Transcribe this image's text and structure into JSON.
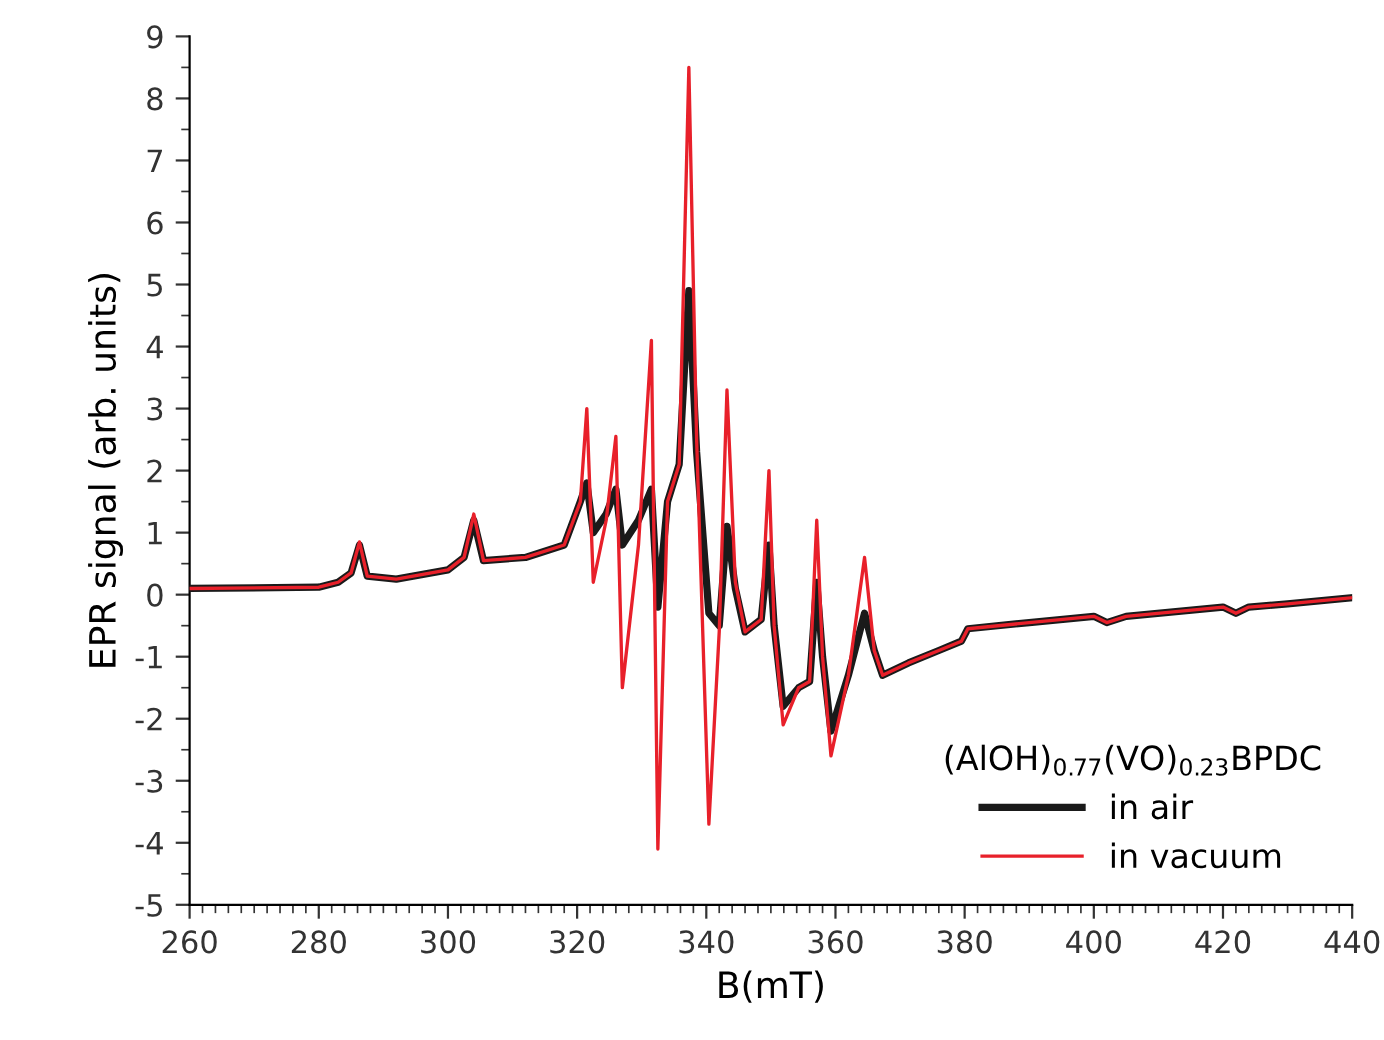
{
  "chart_data": {
    "type": "line",
    "xlabel": "B(mT)",
    "ylabel": "EPR signal (arb. units)",
    "legend_title": "(AlOH)$_{0.77}$(VO)$_{0.23}$BPDC",
    "legend": "bottom right",
    "grid": false,
    "marker": "none",
    "line_style": "solid",
    "xlim": [
      260,
      440
    ],
    "xticks": [
      260,
      280,
      300,
      320,
      340,
      360,
      380,
      400,
      420,
      440
    ],
    "ylim": [
      -5,
      9
    ],
    "yticks": [
      -5,
      -4,
      -3,
      -2,
      -1,
      0,
      1,
      2,
      3,
      4,
      5,
      6,
      7,
      8,
      9
    ],
    "x": [
      260,
      280,
      283,
      285,
      286.3,
      287.5,
      292,
      300,
      302.5,
      304,
      305.5,
      312,
      318,
      320.5,
      321.5,
      322.5,
      324.5,
      326,
      327,
      329.5,
      331.5,
      332.5,
      334,
      335.8,
      337.3,
      338.5,
      340.4,
      342,
      343.2,
      344.5,
      346,
      348.5,
      349.7,
      350.5,
      351.9,
      354.3,
      356,
      357.1,
      358,
      359.3,
      362,
      364.5,
      366,
      367.3,
      371.3,
      376,
      379.5,
      380.5,
      390,
      400,
      402,
      405,
      420,
      422,
      424,
      430,
      440
    ],
    "series": [
      {
        "name": "in air",
        "color": "#1a1a1a",
        "values": [
          0.1,
          0.12,
          0.2,
          0.35,
          0.8,
          0.3,
          0.25,
          0.4,
          0.6,
          1.2,
          0.55,
          0.6,
          0.8,
          1.5,
          1.8,
          1.0,
          1.3,
          1.7,
          0.8,
          1.2,
          1.7,
          -0.2,
          1.5,
          2.1,
          4.9,
          2.3,
          -0.3,
          -0.5,
          1.1,
          0.1,
          -0.6,
          -0.4,
          0.8,
          -0.5,
          -1.8,
          -1.5,
          -1.4,
          0.2,
          -1.0,
          -2.2,
          -1.3,
          -0.3,
          -0.9,
          -1.3,
          -1.1,
          -0.9,
          -0.75,
          -0.55,
          -0.45,
          -0.35,
          -0.45,
          -0.35,
          -0.2,
          -0.3,
          -0.2,
          -0.15,
          -0.05
        ]
      },
      {
        "name": "in vacuum",
        "color": "#e8202a",
        "values": [
          0.1,
          0.12,
          0.2,
          0.35,
          0.85,
          0.3,
          0.25,
          0.4,
          0.6,
          1.3,
          0.55,
          0.6,
          0.8,
          1.5,
          3.0,
          0.2,
          1.2,
          2.55,
          -1.5,
          0.8,
          4.1,
          -4.1,
          1.5,
          2.1,
          8.5,
          2.5,
          -3.7,
          -0.6,
          3.3,
          0.2,
          -0.6,
          -0.4,
          2.0,
          -0.5,
          -2.1,
          -1.5,
          -1.4,
          1.2,
          -1.0,
          -2.6,
          -1.3,
          0.6,
          -0.9,
          -1.3,
          -1.1,
          -0.9,
          -0.75,
          -0.55,
          -0.45,
          -0.35,
          -0.45,
          -0.35,
          -0.2,
          -0.3,
          -0.2,
          -0.15,
          -0.05
        ]
      }
    ]
  }
}
